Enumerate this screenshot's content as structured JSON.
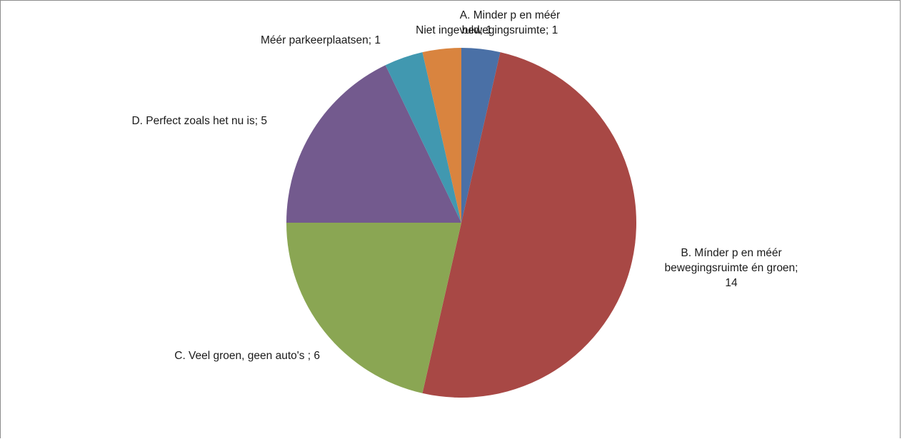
{
  "chart_data": {
    "type": "pie",
    "title": "",
    "slices": [
      {
        "label": "A. Minder p en méér bewegingsruimte",
        "value": 1,
        "label_text": [
          "A. Minder p en méér",
          "bewegingsruimte; 1"
        ],
        "color": "#4a70a6"
      },
      {
        "label": "B. Mínder p en méér bewegingsruimte én groen",
        "value": 14,
        "label_text": [
          "B. Mínder p en méér",
          "bewegingsruimte én groen;",
          "14"
        ],
        "color": "#a84845"
      },
      {
        "label": "C. Veel groen, geen auto's",
        "value": 6,
        "label_text": [
          "C. Veel groen, geen auto's ; 6"
        ],
        "color": "#8aa653"
      },
      {
        "label": "D. Perfect zoals het nu is",
        "value": 5,
        "label_text": [
          "D. Perfect zoals het nu is; 5"
        ],
        "color": "#735a8e"
      },
      {
        "label": "Méér parkeerplaatsen",
        "value": 1,
        "label_text": [
          "Méér parkeerplaatsen; 1"
        ],
        "color": "#4198b0"
      },
      {
        "label": "Niet ingevuld",
        "value": 1,
        "label_text": [
          "Niet ingevuld; 1"
        ],
        "color": "#d9843f"
      }
    ],
    "legend": "none"
  }
}
